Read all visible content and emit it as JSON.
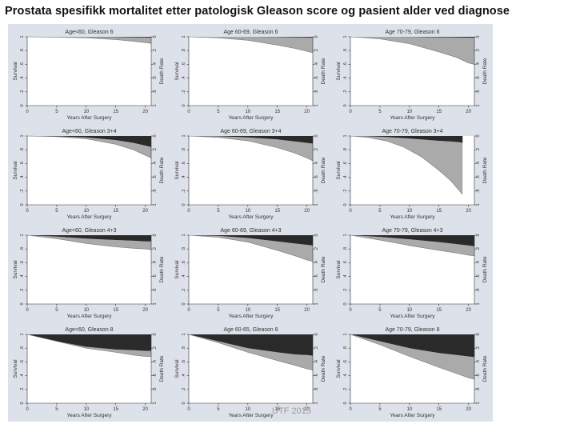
{
  "title": "Prostata spesifikk mortalitet etter patologisk Gleason score og pasient alder ved diagnose",
  "footer": "UTF 2015",
  "colors": {
    "panel_bg": "#dde1ea",
    "plot_bg": "#ffffff",
    "gray_area": "#aaaaaa",
    "black_area": "#2a2a2a"
  },
  "chart_data": [
    {
      "type": "area",
      "title": "Age<60, Gleason 6",
      "xlabel": "Years After Surgery",
      "ylabel": "Survival",
      "y2label": "Death Rate",
      "x": [
        0,
        5,
        10,
        15,
        18,
        20,
        21
      ],
      "xticks": [
        0,
        5,
        10,
        15,
        20
      ],
      "xlim": [
        0,
        21
      ],
      "ylim": [
        0,
        1
      ],
      "yticks": [
        "0",
        ".2",
        ".4",
        ".6",
        ".8",
        "1"
      ],
      "y2ticks": [
        "1",
        ".8",
        ".6",
        ".4",
        ".2",
        "0"
      ],
      "series": [
        {
          "values": [
            1.0,
            0.995,
            0.985,
            0.96,
            0.935,
            0.915,
            0.905
          ]
        },
        {
          "values": [
            1.0,
            1.0,
            0.998,
            0.995,
            0.992,
            0.99,
            0.988
          ]
        }
      ]
    },
    {
      "type": "area",
      "title": "Age 60-69, Gleason 6",
      "xlabel": "Years After Surgery",
      "ylabel": "Survival",
      "y2label": "Death Rate",
      "x": [
        0,
        5,
        10,
        15,
        18,
        20,
        21
      ],
      "xticks": [
        0,
        5,
        10,
        15,
        20
      ],
      "xlim": [
        0,
        21
      ],
      "ylim": [
        0,
        1
      ],
      "yticks": [
        "0",
        ".2",
        ".4",
        ".6",
        ".8",
        "1"
      ],
      "y2ticks": [
        "1",
        ".8",
        ".6",
        ".4",
        ".2",
        "0"
      ],
      "series": [
        {
          "values": [
            1.0,
            0.985,
            0.95,
            0.88,
            0.83,
            0.79,
            0.77
          ]
        },
        {
          "values": [
            1.0,
            1.0,
            0.998,
            0.995,
            0.992,
            0.99,
            0.988
          ]
        }
      ]
    },
    {
      "type": "area",
      "title": "Age 70-79, Gleason 6",
      "xlabel": "Years After Surgery",
      "ylabel": "Survival",
      "y2label": "Death Rate",
      "x": [
        0,
        5,
        10,
        15,
        18,
        20,
        21
      ],
      "xticks": [
        0,
        5,
        10,
        15,
        20
      ],
      "xlim": [
        0,
        21
      ],
      "ylim": [
        0,
        1
      ],
      "yticks": [
        "0",
        ".2",
        ".4",
        ".6",
        ".8",
        "1"
      ],
      "y2ticks": [
        "1",
        ".8",
        ".6",
        ".4",
        ".2",
        "0"
      ],
      "series": [
        {
          "values": [
            1.0,
            0.97,
            0.9,
            0.78,
            0.7,
            0.62,
            0.6
          ]
        },
        {
          "values": [
            1.0,
            1.0,
            0.997,
            0.993,
            0.99,
            0.988,
            0.985
          ]
        }
      ]
    },
    {
      "type": "area",
      "title": "Age<60, Gleason 3+4",
      "xlabel": "Years After Surgery",
      "ylabel": "Survival",
      "y2label": "Death Rate",
      "x": [
        0,
        5,
        10,
        15,
        18,
        20,
        21
      ],
      "xticks": [
        0,
        5,
        10,
        15,
        20
      ],
      "xlim": [
        0,
        21
      ],
      "ylim": [
        0,
        1
      ],
      "yticks": [
        "0",
        ".2",
        ".4",
        ".6",
        ".8",
        "1"
      ],
      "y2ticks": [
        "1",
        ".8",
        ".6",
        ".4",
        ".2",
        "0"
      ],
      "series": [
        {
          "values": [
            1.0,
            0.99,
            0.96,
            0.88,
            0.8,
            0.72,
            0.68
          ]
        },
        {
          "values": [
            1.0,
            0.995,
            0.98,
            0.94,
            0.9,
            0.86,
            0.84
          ]
        }
      ]
    },
    {
      "type": "area",
      "title": "Age 60-69, Gleason 3+4",
      "xlabel": "Years After Surgery",
      "ylabel": "Survival",
      "y2label": "Death Rate",
      "x": [
        0,
        5,
        10,
        15,
        18,
        20,
        21
      ],
      "xticks": [
        0,
        5,
        10,
        15,
        20
      ],
      "xlim": [
        0,
        21
      ],
      "ylim": [
        0,
        1
      ],
      "yticks": [
        "0",
        ".2",
        ".4",
        ".6",
        ".8",
        "1"
      ],
      "y2ticks": [
        "1",
        ".8",
        ".6",
        ".4",
        ".2",
        "0"
      ],
      "series": [
        {
          "values": [
            1.0,
            0.98,
            0.93,
            0.83,
            0.75,
            0.68,
            0.64
          ]
        },
        {
          "values": [
            1.0,
            0.995,
            0.98,
            0.95,
            0.92,
            0.9,
            0.89
          ]
        }
      ]
    },
    {
      "type": "area",
      "title": "Age 70-79, Gleason 3+4",
      "xlabel": "Years After Surgery",
      "ylabel": "Survival",
      "y2label": "Death Rate",
      "x": [
        0,
        3,
        6,
        9,
        12,
        15,
        17,
        18.5,
        19
      ],
      "xticks": [
        0,
        5,
        10,
        15,
        20
      ],
      "xlim": [
        0,
        21
      ],
      "ylim": [
        0,
        1
      ],
      "yticks": [
        "0",
        ".2",
        ".4",
        ".6",
        ".8",
        "1"
      ],
      "y2ticks": [
        "1",
        ".8",
        ".6",
        ".4",
        ".2",
        "0"
      ],
      "series": [
        {
          "values": [
            1.0,
            0.98,
            0.93,
            0.84,
            0.7,
            0.5,
            0.35,
            0.2,
            0.15
          ]
        },
        {
          "values": [
            1.0,
            0.995,
            0.985,
            0.97,
            0.95,
            0.93,
            0.92,
            0.91,
            0.9
          ]
        }
      ]
    },
    {
      "type": "area",
      "title": "Age<60, Gleason 4+3",
      "xlabel": "Years After Surgery",
      "ylabel": "Survival",
      "y2label": "Death Rate",
      "x": [
        0,
        5,
        10,
        15,
        18,
        20,
        21
      ],
      "xticks": [
        0,
        5,
        10,
        15,
        20
      ],
      "xlim": [
        0,
        21
      ],
      "ylim": [
        0,
        1
      ],
      "yticks": [
        "0",
        ".2",
        ".4",
        ".6",
        ".8",
        "1"
      ],
      "y2ticks": [
        "1",
        ".8",
        ".6",
        ".4",
        ".2",
        "0"
      ],
      "series": [
        {
          "values": [
            1.0,
            0.95,
            0.88,
            0.83,
            0.81,
            0.8,
            0.79
          ]
        },
        {
          "values": [
            1.0,
            0.98,
            0.95,
            0.93,
            0.92,
            0.91,
            0.91
          ]
        }
      ]
    },
    {
      "type": "area",
      "title": "Age 60-69, Gleason 4+3",
      "xlabel": "Years After Surgery",
      "ylabel": "Survival",
      "y2label": "Death Rate",
      "x": [
        0,
        5,
        10,
        15,
        18,
        20,
        21
      ],
      "xticks": [
        0,
        5,
        10,
        15,
        20
      ],
      "xlim": [
        0,
        21
      ],
      "ylim": [
        0,
        1
      ],
      "yticks": [
        "0",
        ".2",
        ".4",
        ".6",
        ".8",
        "1"
      ],
      "y2ticks": [
        "1",
        ".8",
        ".6",
        ".4",
        ".2",
        "0"
      ],
      "series": [
        {
          "values": [
            1.0,
            0.97,
            0.9,
            0.78,
            0.7,
            0.64,
            0.62
          ]
        },
        {
          "values": [
            1.0,
            0.99,
            0.96,
            0.91,
            0.88,
            0.86,
            0.85
          ]
        }
      ]
    },
    {
      "type": "area",
      "title": "Age 70-79, Gleason 4+3",
      "xlabel": "Years After Surgery",
      "ylabel": "Survival",
      "y2label": "Death Rate",
      "x": [
        0,
        5,
        10,
        15,
        18,
        20,
        21
      ],
      "xticks": [
        0,
        5,
        10,
        15,
        20
      ],
      "xlim": [
        0,
        21
      ],
      "ylim": [
        0,
        1
      ],
      "yticks": [
        "0",
        ".2",
        ".4",
        ".6",
        ".8",
        "1"
      ],
      "y2ticks": [
        "1",
        ".8",
        ".6",
        ".4",
        ".2",
        "0"
      ],
      "series": [
        {
          "values": [
            1.0,
            0.93,
            0.85,
            0.78,
            0.74,
            0.71,
            0.7
          ]
        },
        {
          "values": [
            1.0,
            0.975,
            0.94,
            0.9,
            0.87,
            0.85,
            0.84
          ]
        }
      ]
    },
    {
      "type": "area",
      "title": "Age<60, Gleason 8",
      "xlabel": "Years After Surgery",
      "ylabel": "Survival",
      "y2label": "Death Rate",
      "x": [
        0,
        5,
        10,
        15,
        18,
        20,
        21
      ],
      "xticks": [
        0,
        5,
        10,
        15,
        20
      ],
      "xlim": [
        0,
        21
      ],
      "ylim": [
        0,
        1
      ],
      "yticks": [
        "0",
        ".2",
        ".4",
        ".6",
        ".8",
        "1"
      ],
      "y2ticks": [
        "1",
        ".8",
        ".6",
        ".4",
        ".2",
        "0"
      ],
      "series": [
        {
          "values": [
            1.0,
            0.9,
            0.8,
            0.74,
            0.7,
            0.68,
            0.68
          ]
        },
        {
          "values": [
            1.0,
            0.9,
            0.82,
            0.78,
            0.77,
            0.76,
            0.76
          ]
        }
      ]
    },
    {
      "type": "area",
      "title": "Age 60-65, Gleason 8",
      "xlabel": "Years After Surgery",
      "ylabel": "Survival",
      "y2label": "Death Rate",
      "x": [
        0,
        5,
        10,
        15,
        18,
        20,
        21
      ],
      "xticks": [
        0,
        5,
        10,
        15,
        20
      ],
      "xlim": [
        0,
        21
      ],
      "ylim": [
        0,
        1
      ],
      "yticks": [
        "0",
        ".2",
        ".4",
        ".6",
        ".8",
        "1"
      ],
      "y2ticks": [
        "1",
        ".8",
        ".6",
        ".4",
        ".2",
        "0"
      ],
      "series": [
        {
          "values": [
            1.0,
            0.88,
            0.74,
            0.62,
            0.55,
            0.5,
            0.48
          ]
        },
        {
          "values": [
            1.0,
            0.9,
            0.8,
            0.74,
            0.71,
            0.7,
            0.69
          ]
        }
      ]
    },
    {
      "type": "area",
      "title": "Age 70-79, Gleason 8",
      "xlabel": "Years After Surgery",
      "ylabel": "Survival",
      "y2label": "Death Rate",
      "x": [
        0,
        5,
        10,
        15,
        18,
        20,
        21
      ],
      "xticks": [
        0,
        5,
        10,
        15,
        20
      ],
      "xlim": [
        0,
        21
      ],
      "ylim": [
        0,
        1
      ],
      "yticks": [
        "0",
        ".2",
        ".4",
        ".6",
        ".8",
        "1"
      ],
      "y2ticks": [
        "1",
        ".8",
        ".6",
        ".4",
        ".2",
        "0"
      ],
      "series": [
        {
          "values": [
            1.0,
            0.85,
            0.68,
            0.52,
            0.43,
            0.37,
            0.35
          ]
        },
        {
          "values": [
            1.0,
            0.9,
            0.8,
            0.73,
            0.7,
            0.68,
            0.67
          ]
        }
      ]
    }
  ]
}
